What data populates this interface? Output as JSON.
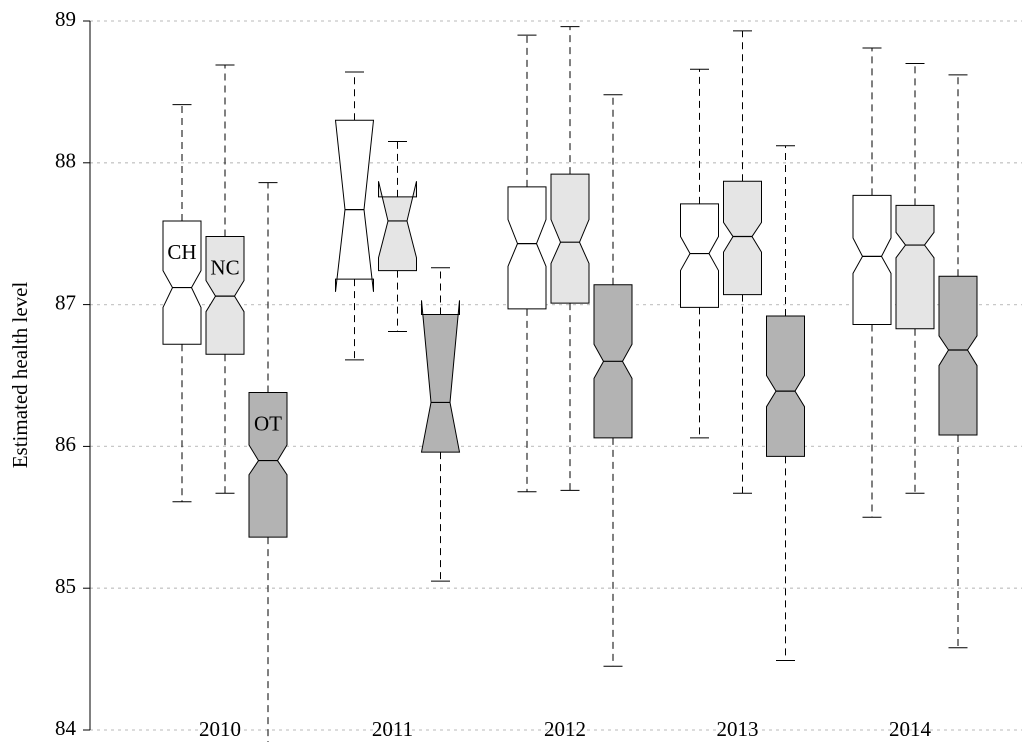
{
  "chart_data": {
    "type": "boxplot",
    "ylabel": "Estimated health level",
    "categories": [
      "2010",
      "2011",
      "2012",
      "2013",
      "2014"
    ],
    "ylim": [
      84,
      89
    ],
    "yticks": [
      84,
      85,
      86,
      87,
      88,
      89
    ],
    "grid": true,
    "series": [
      {
        "name": "CH",
        "color": "#ffffff",
        "whisker_low": [
          85.61,
          86.61,
          85.68,
          86.06,
          85.5
        ],
        "q1": [
          86.72,
          87.18,
          86.97,
          86.98,
          86.86
        ],
        "notch_low": [
          86.98,
          87.09,
          87.27,
          87.24,
          87.22
        ],
        "median": [
          87.12,
          87.67,
          87.43,
          87.36,
          87.34
        ],
        "notch_high": [
          87.24,
          88.3,
          87.6,
          87.48,
          87.47
        ],
        "q3": [
          87.59,
          88.3,
          87.83,
          87.71,
          87.77
        ],
        "whisker_high": [
          88.41,
          88.64,
          88.9,
          88.66,
          88.81
        ]
      },
      {
        "name": "NC",
        "color": "#e5e5e5",
        "whisker_low": [
          85.67,
          86.81,
          85.69,
          85.67,
          85.67
        ],
        "q1": [
          86.65,
          87.24,
          87.01,
          87.07,
          86.83
        ],
        "notch_low": [
          86.95,
          87.33,
          87.29,
          87.37,
          87.33
        ],
        "median": [
          87.06,
          87.59,
          87.44,
          87.48,
          87.42
        ],
        "notch_high": [
          87.17,
          87.87,
          87.6,
          87.58,
          87.51
        ],
        "q3": [
          87.48,
          87.76,
          87.92,
          87.87,
          87.7
        ],
        "whisker_high": [
          88.69,
          88.15,
          88.96,
          88.93,
          88.7
        ]
      },
      {
        "name": "OT",
        "color": "#b3b3b3",
        "whisker_low": [
          83.9,
          85.05,
          84.45,
          84.49,
          84.58
        ],
        "q1": [
          85.36,
          85.96,
          86.06,
          85.93,
          86.08
        ],
        "notch_low": [
          85.8,
          85.96,
          86.48,
          86.28,
          86.57
        ],
        "median": [
          85.9,
          86.31,
          86.6,
          86.39,
          86.68
        ],
        "notch_high": [
          86.01,
          87.03,
          86.72,
          86.5,
          86.78
        ],
        "q3": [
          86.38,
          86.93,
          87.14,
          86.92,
          87.2
        ],
        "whisker_high": [
          87.86,
          87.26,
          88.48,
          88.12,
          88.62
        ]
      }
    ]
  }
}
